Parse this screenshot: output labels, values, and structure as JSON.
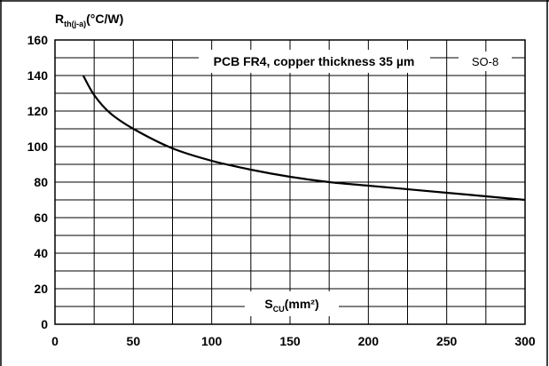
{
  "chart_data": {
    "type": "line",
    "title": "PCB FR4, copper thickness 35 µm",
    "package_label": "SO-8",
    "ylabel": {
      "main": "R",
      "sub": "th(j-a)",
      "unit": "(°C/W)"
    },
    "xlabel": {
      "main": "S",
      "sub": "CU",
      "unit": "(mm²)"
    },
    "xlim": [
      0,
      300
    ],
    "ylim": [
      0,
      160
    ],
    "x_ticks": [
      0,
      50,
      100,
      150,
      200,
      250,
      300
    ],
    "y_ticks": [
      0,
      20,
      40,
      60,
      80,
      100,
      120,
      140,
      160
    ],
    "grid": true,
    "series": [
      {
        "x": [
          18,
          25,
          35,
          50,
          75,
          100,
          125,
          150,
          175,
          200,
          225,
          250,
          275,
          300
        ],
        "y": [
          140,
          129,
          119,
          110,
          99,
          92,
          87,
          83,
          80,
          78,
          76,
          74,
          72,
          70
        ]
      }
    ]
  }
}
